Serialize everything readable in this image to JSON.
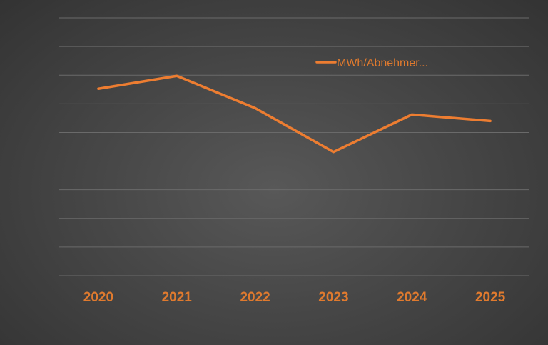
{
  "chart_data": {
    "type": "line",
    "title": "",
    "xlabel": "",
    "ylabel": "",
    "categories": [
      "2020",
      "2021",
      "2022",
      "2023",
      "2024",
      "2025"
    ],
    "series": [
      {
        "name": "MWh/Abnehmer...",
        "values": [
          7.25,
          7.75,
          6.5,
          4.8,
          6.25,
          6.0
        ]
      }
    ],
    "ylim": [
      0,
      10
    ],
    "grid": true,
    "legend": "top-right",
    "colors": {
      "line": "#ed7d31",
      "tick_text": "#e07a2e",
      "grid": "#6a6a6a",
      "background": "#474747"
    }
  }
}
